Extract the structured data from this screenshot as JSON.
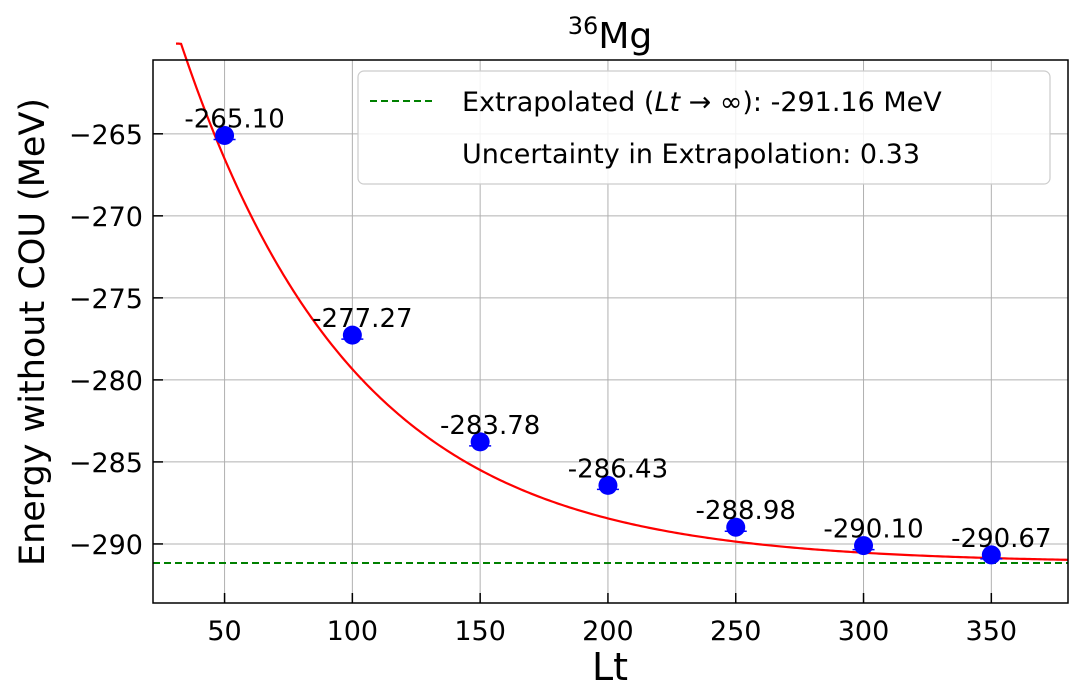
{
  "chart_data": {
    "type": "scatter",
    "title_base": "Mg",
    "title_superscript": "36",
    "xlabel": "Lt",
    "ylabel": "Energy without COU (MeV)",
    "xlim": [
      22,
      380
    ],
    "ylim": [
      -293.6,
      -260.5
    ],
    "xticks": [
      50,
      100,
      150,
      200,
      250,
      300,
      350
    ],
    "yticks": [
      -265,
      -270,
      -275,
      -280,
      -285,
      -290
    ],
    "grid": true,
    "legend_position": "top-right",
    "series": [
      {
        "kind": "errorbar-points",
        "color": "#0000ff",
        "x": [
          50,
          100,
          150,
          200,
          250,
          300,
          350
        ],
        "y": [
          -265.1,
          -277.27,
          -283.78,
          -286.43,
          -288.98,
          -290.1,
          -290.67
        ],
        "labels": [
          "-265.10",
          "-277.27",
          "-283.78",
          "-286.43",
          "-288.98",
          "-290.10",
          "-290.67"
        ]
      },
      {
        "kind": "fit-curve",
        "color": "#ff0000",
        "model": "exponential",
        "asymptote": -291.16,
        "amplitude": 51.4,
        "decay": 0.0147
      },
      {
        "kind": "horizontal-line",
        "color": "#008000",
        "dash": true,
        "y": -291.16
      }
    ],
    "legend": {
      "line_entry_prefix": "Extrapolated (",
      "line_entry_math": "Lt",
      "line_entry_arrow": " → ∞",
      "line_entry_suffix": "): -291.16 MeV",
      "uncertainty_entry": "Uncertainty in Extrapolation: 0.33"
    }
  }
}
